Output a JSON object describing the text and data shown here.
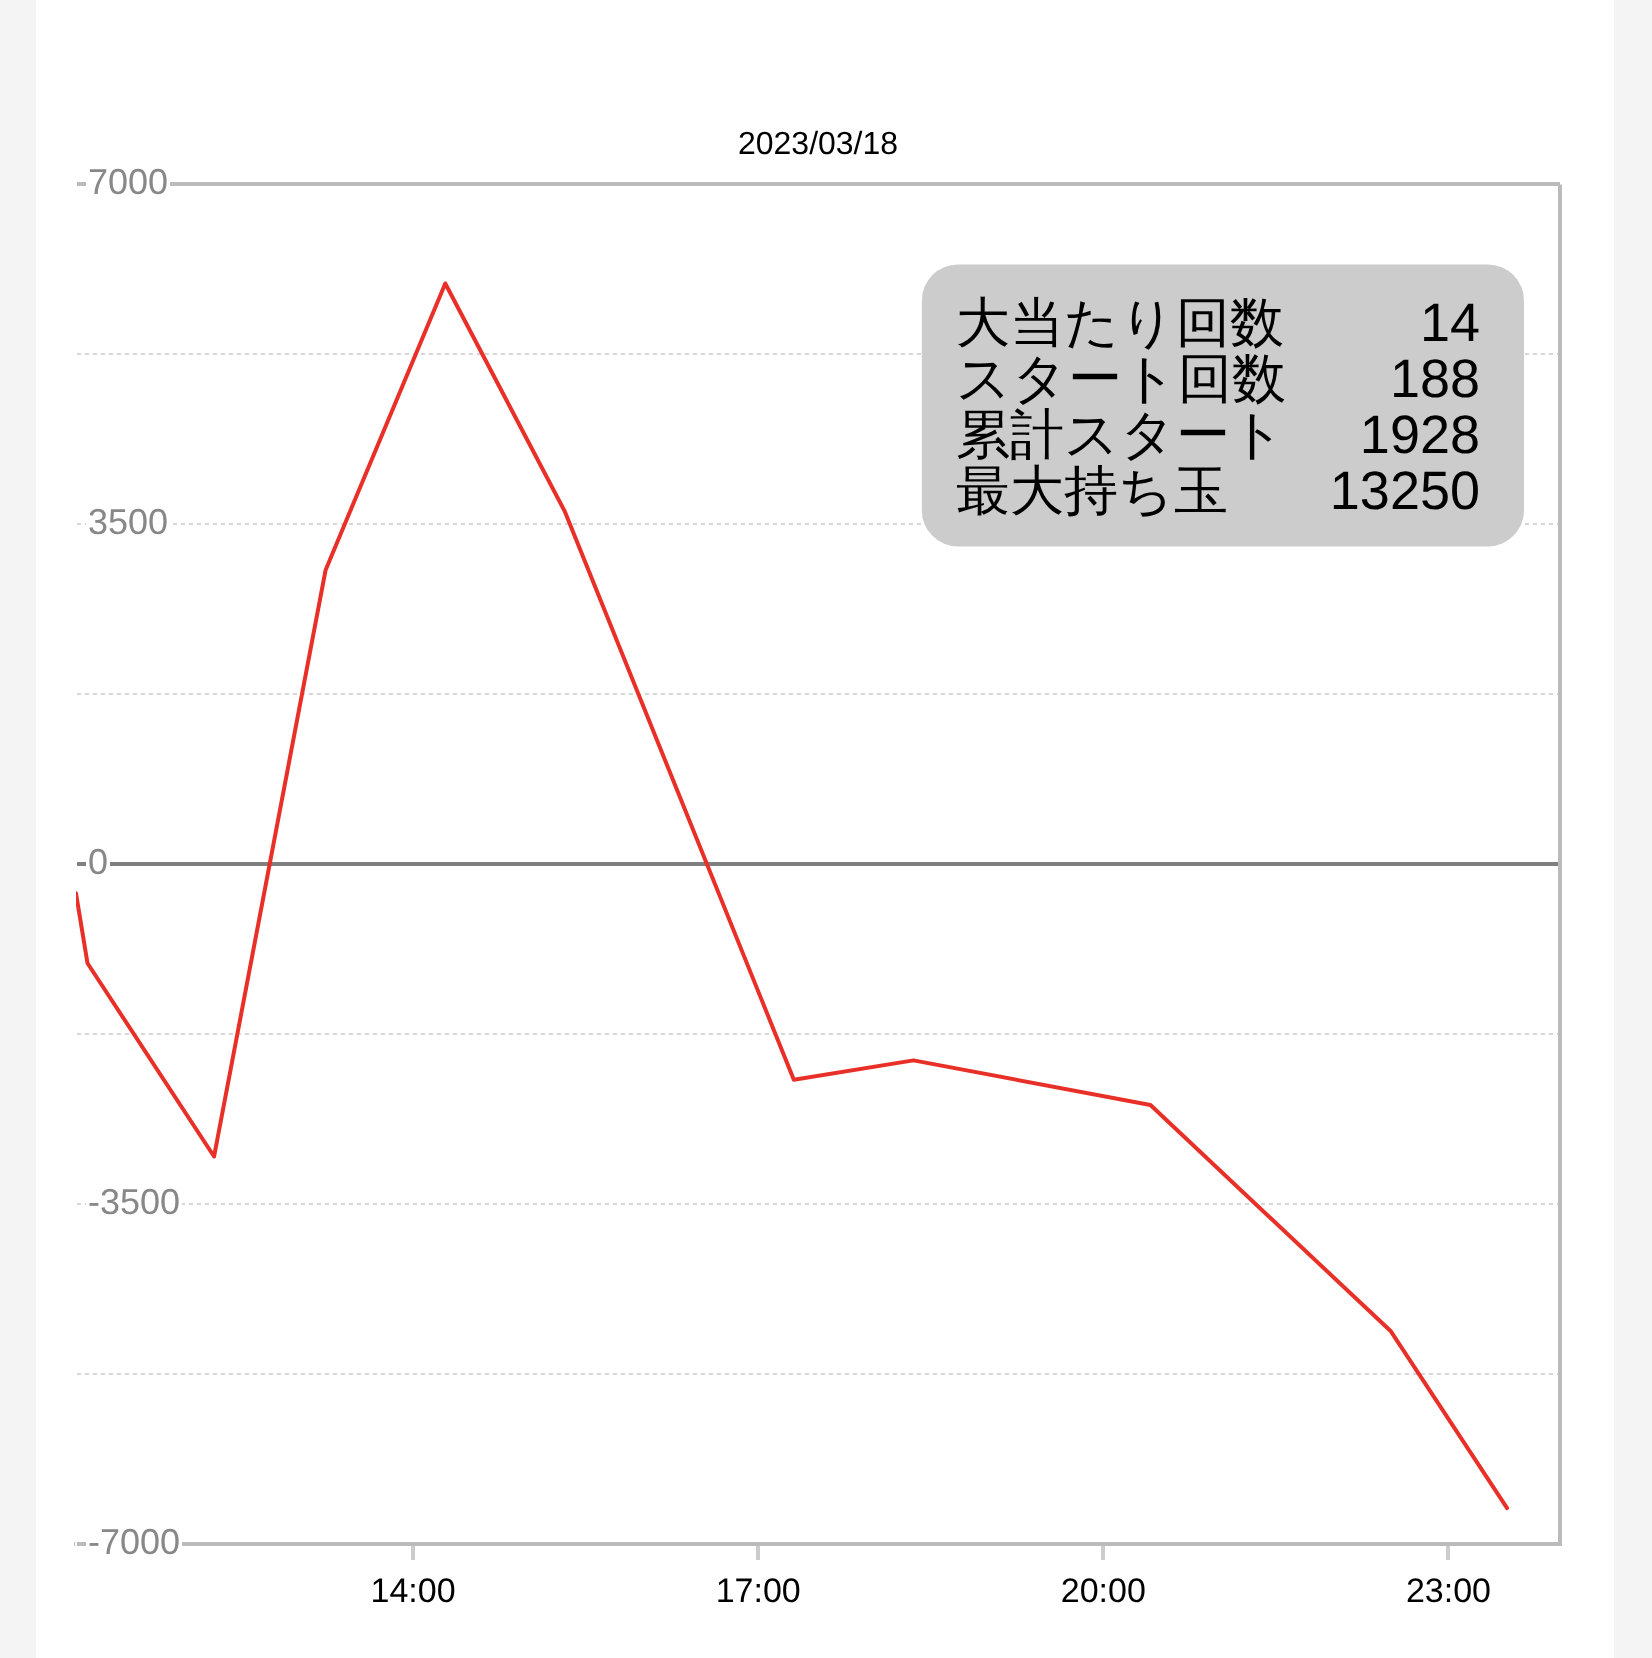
{
  "chart_data": {
    "type": "line",
    "title": "2023/03/18",
    "x": [
      11.07,
      11.17,
      12.27,
      13.24,
      14.28,
      15.32,
      17.31,
      18.35,
      20.41,
      22.5,
      23.51
    ],
    "values": [
      -300,
      -1020,
      -3010,
      3030,
      5980,
      3630,
      -2220,
      -2020,
      -2480,
      -4810,
      -6630
    ],
    "color": "#e83028",
    "xlim": [
      11.07,
      23.97
    ],
    "xticks": [
      {
        "value": 14,
        "label": "14:00"
      },
      {
        "value": 17,
        "label": "17:00"
      },
      {
        "value": 20,
        "label": "20:00"
      },
      {
        "value": 23,
        "label": "23:00"
      }
    ],
    "ylim": [
      -7000,
      7000
    ],
    "yticks": [
      -7000,
      {
        "value": -5250,
        "label": null
      },
      -3500,
      {
        "value": -1750,
        "label": null
      },
      0,
      {
        "value": 1750,
        "label": null
      },
      3500,
      {
        "value": 5250,
        "label": null
      },
      7000
    ],
    "grid": "y",
    "marker": "none",
    "annotations": [
      "大当たり回数",
      "14",
      "スタート回数",
      "188",
      "累計スタート",
      "1928",
      "最大持ち玉",
      "13250"
    ]
  }
}
